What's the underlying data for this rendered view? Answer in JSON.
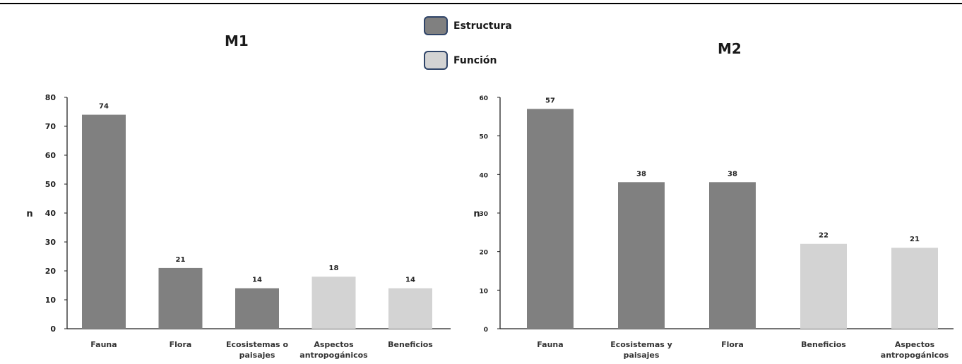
{
  "legend": {
    "items": [
      {
        "label": "Estructura",
        "color": "#808080"
      },
      {
        "label": "Función",
        "color": "#d3d3d3"
      }
    ]
  },
  "chart_data": [
    {
      "type": "bar",
      "title": "M1",
      "ylabel": "n",
      "xlabel": "",
      "ylim": [
        0,
        80
      ],
      "yticks": [
        0,
        10,
        20,
        30,
        40,
        50,
        60,
        70,
        80
      ],
      "categories": [
        "Fauna",
        "Flora",
        "Ecosistemas o paisajes",
        "Aspectos antropogánicos",
        "Beneficios"
      ],
      "values": [
        74,
        21,
        14,
        18,
        14
      ],
      "groups": [
        "Estructura",
        "Estructura",
        "Estructura",
        "Función",
        "Función"
      ],
      "grid": false
    },
    {
      "type": "bar",
      "title": "M2",
      "ylabel": "n",
      "xlabel": "",
      "ylim": [
        0,
        60
      ],
      "yticks": [
        0,
        10,
        20,
        30,
        40,
        50,
        60
      ],
      "categories": [
        "Fauna",
        "Ecosistemas y paisajes",
        "Flora",
        "Beneficios",
        "Aspectos antropogánicos"
      ],
      "values": [
        57,
        38,
        38,
        22,
        21
      ],
      "groups": [
        "Estructura",
        "Estructura",
        "Estructura",
        "Función",
        "Función"
      ],
      "grid": false
    }
  ]
}
